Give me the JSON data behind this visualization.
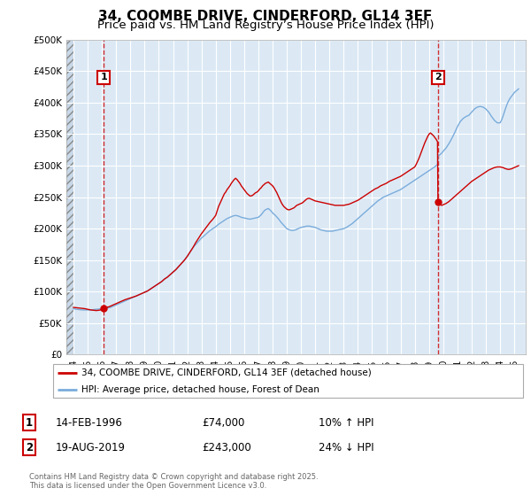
{
  "title": "34, COOMBE DRIVE, CINDERFORD, GL14 3EF",
  "subtitle": "Price paid vs. HM Land Registry’s House Price Index (HPI)",
  "title_fontsize": 11,
  "subtitle_fontsize": 9.5,
  "background_color": "#ffffff",
  "plot_bg_color": "#dce9f5",
  "grid_color": "#ffffff",
  "ylim": [
    0,
    500000
  ],
  "yticks": [
    0,
    50000,
    100000,
    150000,
    200000,
    250000,
    300000,
    350000,
    400000,
    450000,
    500000
  ],
  "ytick_labels": [
    "£0",
    "£50K",
    "£100K",
    "£150K",
    "£200K",
    "£250K",
    "£300K",
    "£350K",
    "£400K",
    "£450K",
    "£500K"
  ],
  "xlim_start": 1993.5,
  "xlim_end": 2025.8,
  "xticks": [
    1994,
    1995,
    1996,
    1997,
    1998,
    1999,
    2000,
    2001,
    2002,
    2003,
    2004,
    2005,
    2006,
    2007,
    2008,
    2009,
    2010,
    2011,
    2012,
    2013,
    2014,
    2015,
    2016,
    2017,
    2018,
    2019,
    2020,
    2021,
    2022,
    2023,
    2024,
    2025
  ],
  "red_line_color": "#cc0000",
  "blue_line_color": "#7aacdb",
  "vline_color": "#cc0000",
  "legend_label_red": "34, COOMBE DRIVE, CINDERFORD, GL14 3EF (detached house)",
  "legend_label_blue": "HPI: Average price, detached house, Forest of Dean",
  "annotation1_year": 1996.12,
  "annotation1_price": 74000,
  "annotation1_date": "14-FEB-1996",
  "annotation1_price_str": "£74,000",
  "annotation1_hpi": "10% ↑ HPI",
  "annotation2_year": 2019.63,
  "annotation2_price": 243000,
  "annotation2_date": "19-AUG-2019",
  "annotation2_price_str": "£243,000",
  "annotation2_hpi": "24% ↓ HPI",
  "footer_text": "Contains HM Land Registry data © Crown copyright and database right 2025.\nThis data is licensed under the Open Government Licence v3.0.",
  "red_data": [
    [
      1994.0,
      75000
    ],
    [
      1994.2,
      74500
    ],
    [
      1994.4,
      74000
    ],
    [
      1994.6,
      73500
    ],
    [
      1994.8,
      73000
    ],
    [
      1995.0,
      72000
    ],
    [
      1995.2,
      71000
    ],
    [
      1995.4,
      70500
    ],
    [
      1995.6,
      70000
    ],
    [
      1995.8,
      70500
    ],
    [
      1996.0,
      71500
    ],
    [
      1996.12,
      74000
    ],
    [
      1996.3,
      75000
    ],
    [
      1996.5,
      76000
    ],
    [
      1996.7,
      78000
    ],
    [
      1996.9,
      80000
    ],
    [
      1997.0,
      81000
    ],
    [
      1997.2,
      83000
    ],
    [
      1997.4,
      85000
    ],
    [
      1997.6,
      87000
    ],
    [
      1997.8,
      88500
    ],
    [
      1998.0,
      90000
    ],
    [
      1998.2,
      91500
    ],
    [
      1998.4,
      93000
    ],
    [
      1998.6,
      95000
    ],
    [
      1998.8,
      97000
    ],
    [
      1999.0,
      99000
    ],
    [
      1999.2,
      101000
    ],
    [
      1999.4,
      104000
    ],
    [
      1999.6,
      107000
    ],
    [
      1999.8,
      110000
    ],
    [
      2000.0,
      113000
    ],
    [
      2000.2,
      116000
    ],
    [
      2000.4,
      120000
    ],
    [
      2000.6,
      123000
    ],
    [
      2000.8,
      127000
    ],
    [
      2001.0,
      131000
    ],
    [
      2001.2,
      135000
    ],
    [
      2001.4,
      140000
    ],
    [
      2001.6,
      145000
    ],
    [
      2001.8,
      150000
    ],
    [
      2002.0,
      156000
    ],
    [
      2002.2,
      163000
    ],
    [
      2002.4,
      170000
    ],
    [
      2002.6,
      178000
    ],
    [
      2002.8,
      185000
    ],
    [
      2003.0,
      192000
    ],
    [
      2003.2,
      198000
    ],
    [
      2003.4,
      204000
    ],
    [
      2003.6,
      210000
    ],
    [
      2003.8,
      215000
    ],
    [
      2004.0,
      221000
    ],
    [
      2004.1,
      228000
    ],
    [
      2004.2,
      235000
    ],
    [
      2004.3,
      240000
    ],
    [
      2004.4,
      245000
    ],
    [
      2004.5,
      250000
    ],
    [
      2004.6,
      255000
    ],
    [
      2004.7,
      258000
    ],
    [
      2004.8,
      262000
    ],
    [
      2004.9,
      265000
    ],
    [
      2005.0,
      268000
    ],
    [
      2005.1,
      272000
    ],
    [
      2005.2,
      275000
    ],
    [
      2005.3,
      278000
    ],
    [
      2005.4,
      280000
    ],
    [
      2005.5,
      278000
    ],
    [
      2005.6,
      275000
    ],
    [
      2005.7,
      272000
    ],
    [
      2005.8,
      268000
    ],
    [
      2005.9,
      265000
    ],
    [
      2006.0,
      262000
    ],
    [
      2006.1,
      259000
    ],
    [
      2006.2,
      256000
    ],
    [
      2006.3,
      254000
    ],
    [
      2006.4,
      252000
    ],
    [
      2006.5,
      252000
    ],
    [
      2006.6,
      253000
    ],
    [
      2006.7,
      255000
    ],
    [
      2006.8,
      257000
    ],
    [
      2006.9,
      258000
    ],
    [
      2007.0,
      260000
    ],
    [
      2007.1,
      263000
    ],
    [
      2007.2,
      265000
    ],
    [
      2007.3,
      268000
    ],
    [
      2007.4,
      270000
    ],
    [
      2007.5,
      272000
    ],
    [
      2007.6,
      273000
    ],
    [
      2007.7,
      274000
    ],
    [
      2007.8,
      272000
    ],
    [
      2007.9,
      270000
    ],
    [
      2008.0,
      268000
    ],
    [
      2008.1,
      265000
    ],
    [
      2008.2,
      261000
    ],
    [
      2008.3,
      257000
    ],
    [
      2008.4,
      252000
    ],
    [
      2008.5,
      247000
    ],
    [
      2008.6,
      242000
    ],
    [
      2008.7,
      238000
    ],
    [
      2008.8,
      235000
    ],
    [
      2008.9,
      233000
    ],
    [
      2009.0,
      231000
    ],
    [
      2009.1,
      230000
    ],
    [
      2009.2,
      230000
    ],
    [
      2009.3,
      231000
    ],
    [
      2009.4,
      232000
    ],
    [
      2009.5,
      233000
    ],
    [
      2009.6,
      235000
    ],
    [
      2009.7,
      237000
    ],
    [
      2009.8,
      238000
    ],
    [
      2009.9,
      239000
    ],
    [
      2010.0,
      240000
    ],
    [
      2010.1,
      241000
    ],
    [
      2010.2,
      243000
    ],
    [
      2010.3,
      245000
    ],
    [
      2010.4,
      247000
    ],
    [
      2010.5,
      248000
    ],
    [
      2010.6,
      248000
    ],
    [
      2010.7,
      247000
    ],
    [
      2010.8,
      246000
    ],
    [
      2010.9,
      245000
    ],
    [
      2011.0,
      244000
    ],
    [
      2011.2,
      243000
    ],
    [
      2011.4,
      242000
    ],
    [
      2011.6,
      241000
    ],
    [
      2011.8,
      240000
    ],
    [
      2012.0,
      239000
    ],
    [
      2012.2,
      238000
    ],
    [
      2012.4,
      237000
    ],
    [
      2012.6,
      237000
    ],
    [
      2012.8,
      237000
    ],
    [
      2013.0,
      237000
    ],
    [
      2013.2,
      238000
    ],
    [
      2013.4,
      239000
    ],
    [
      2013.6,
      241000
    ],
    [
      2013.8,
      243000
    ],
    [
      2014.0,
      245000
    ],
    [
      2014.2,
      248000
    ],
    [
      2014.4,
      251000
    ],
    [
      2014.6,
      254000
    ],
    [
      2014.8,
      257000
    ],
    [
      2015.0,
      260000
    ],
    [
      2015.2,
      263000
    ],
    [
      2015.4,
      265000
    ],
    [
      2015.6,
      268000
    ],
    [
      2015.8,
      270000
    ],
    [
      2016.0,
      272000
    ],
    [
      2016.2,
      275000
    ],
    [
      2016.4,
      277000
    ],
    [
      2016.6,
      279000
    ],
    [
      2016.8,
      281000
    ],
    [
      2017.0,
      283000
    ],
    [
      2017.2,
      286000
    ],
    [
      2017.4,
      289000
    ],
    [
      2017.6,
      292000
    ],
    [
      2017.8,
      295000
    ],
    [
      2018.0,
      298000
    ],
    [
      2018.1,
      302000
    ],
    [
      2018.2,
      307000
    ],
    [
      2018.3,
      312000
    ],
    [
      2018.4,
      318000
    ],
    [
      2018.5,
      324000
    ],
    [
      2018.6,
      330000
    ],
    [
      2018.7,
      336000
    ],
    [
      2018.8,
      341000
    ],
    [
      2018.9,
      346000
    ],
    [
      2019.0,
      350000
    ],
    [
      2019.1,
      352000
    ],
    [
      2019.2,
      350000
    ],
    [
      2019.3,
      348000
    ],
    [
      2019.4,
      345000
    ],
    [
      2019.5,
      342000
    ],
    [
      2019.6,
      338000
    ],
    [
      2019.63,
      243000
    ],
    [
      2019.7,
      240000
    ],
    [
      2019.8,
      238000
    ],
    [
      2019.9,
      237000
    ],
    [
      2020.0,
      238000
    ],
    [
      2020.2,
      240000
    ],
    [
      2020.4,
      243000
    ],
    [
      2020.6,
      247000
    ],
    [
      2020.8,
      251000
    ],
    [
      2021.0,
      255000
    ],
    [
      2021.2,
      259000
    ],
    [
      2021.4,
      263000
    ],
    [
      2021.6,
      267000
    ],
    [
      2021.8,
      271000
    ],
    [
      2022.0,
      275000
    ],
    [
      2022.2,
      278000
    ],
    [
      2022.4,
      281000
    ],
    [
      2022.6,
      284000
    ],
    [
      2022.8,
      287000
    ],
    [
      2023.0,
      290000
    ],
    [
      2023.2,
      293000
    ],
    [
      2023.4,
      295000
    ],
    [
      2023.6,
      297000
    ],
    [
      2023.8,
      298000
    ],
    [
      2024.0,
      298000
    ],
    [
      2024.2,
      297000
    ],
    [
      2024.4,
      295000
    ],
    [
      2024.6,
      294000
    ],
    [
      2024.8,
      295000
    ],
    [
      2025.0,
      297000
    ],
    [
      2025.3,
      300000
    ]
  ],
  "blue_data": [
    [
      1994.0,
      73000
    ],
    [
      1994.2,
      72000
    ],
    [
      1994.4,
      71500
    ],
    [
      1994.6,
      71000
    ],
    [
      1994.8,
      71000
    ],
    [
      1995.0,
      71000
    ],
    [
      1995.2,
      71000
    ],
    [
      1995.4,
      71500
    ],
    [
      1995.6,
      72000
    ],
    [
      1995.8,
      72500
    ],
    [
      1996.0,
      73000
    ],
    [
      1996.2,
      73500
    ],
    [
      1996.4,
      74000
    ],
    [
      1996.6,
      75000
    ],
    [
      1996.8,
      77000
    ],
    [
      1997.0,
      79000
    ],
    [
      1997.2,
      81000
    ],
    [
      1997.4,
      83000
    ],
    [
      1997.6,
      85000
    ],
    [
      1997.8,
      87000
    ],
    [
      1998.0,
      89000
    ],
    [
      1998.2,
      91000
    ],
    [
      1998.4,
      93000
    ],
    [
      1998.6,
      95000
    ],
    [
      1998.8,
      97000
    ],
    [
      1999.0,
      99000
    ],
    [
      1999.2,
      101000
    ],
    [
      1999.4,
      104000
    ],
    [
      1999.6,
      107000
    ],
    [
      1999.8,
      110000
    ],
    [
      2000.0,
      113000
    ],
    [
      2000.2,
      116000
    ],
    [
      2000.4,
      120000
    ],
    [
      2000.6,
      123000
    ],
    [
      2000.8,
      127000
    ],
    [
      2001.0,
      131000
    ],
    [
      2001.2,
      135000
    ],
    [
      2001.4,
      140000
    ],
    [
      2001.6,
      145000
    ],
    [
      2001.8,
      150000
    ],
    [
      2002.0,
      156000
    ],
    [
      2002.2,
      163000
    ],
    [
      2002.4,
      170000
    ],
    [
      2002.6,
      175000
    ],
    [
      2002.8,
      180000
    ],
    [
      2003.0,
      185000
    ],
    [
      2003.2,
      189000
    ],
    [
      2003.4,
      193000
    ],
    [
      2003.6,
      197000
    ],
    [
      2003.8,
      200000
    ],
    [
      2004.0,
      203000
    ],
    [
      2004.2,
      207000
    ],
    [
      2004.4,
      210000
    ],
    [
      2004.6,
      213000
    ],
    [
      2004.8,
      216000
    ],
    [
      2005.0,
      218000
    ],
    [
      2005.2,
      220000
    ],
    [
      2005.4,
      221000
    ],
    [
      2005.6,
      220000
    ],
    [
      2005.8,
      218000
    ],
    [
      2006.0,
      217000
    ],
    [
      2006.2,
      216000
    ],
    [
      2006.4,
      215000
    ],
    [
      2006.6,
      216000
    ],
    [
      2006.8,
      217000
    ],
    [
      2007.0,
      218000
    ],
    [
      2007.1,
      220000
    ],
    [
      2007.2,
      222000
    ],
    [
      2007.3,
      225000
    ],
    [
      2007.4,
      228000
    ],
    [
      2007.5,
      230000
    ],
    [
      2007.6,
      231000
    ],
    [
      2007.7,
      232000
    ],
    [
      2007.8,
      230000
    ],
    [
      2007.9,
      228000
    ],
    [
      2008.0,
      225000
    ],
    [
      2008.2,
      221000
    ],
    [
      2008.4,
      216000
    ],
    [
      2008.6,
      210000
    ],
    [
      2008.8,
      205000
    ],
    [
      2009.0,
      200000
    ],
    [
      2009.2,
      198000
    ],
    [
      2009.4,
      197000
    ],
    [
      2009.6,
      198000
    ],
    [
      2009.8,
      200000
    ],
    [
      2010.0,
      202000
    ],
    [
      2010.2,
      203000
    ],
    [
      2010.4,
      204000
    ],
    [
      2010.6,
      204000
    ],
    [
      2010.8,
      203000
    ],
    [
      2011.0,
      202000
    ],
    [
      2011.2,
      200000
    ],
    [
      2011.4,
      198000
    ],
    [
      2011.6,
      197000
    ],
    [
      2011.8,
      196000
    ],
    [
      2012.0,
      196000
    ],
    [
      2012.2,
      196000
    ],
    [
      2012.4,
      197000
    ],
    [
      2012.6,
      198000
    ],
    [
      2012.8,
      199000
    ],
    [
      2013.0,
      200000
    ],
    [
      2013.2,
      202000
    ],
    [
      2013.4,
      205000
    ],
    [
      2013.6,
      208000
    ],
    [
      2013.8,
      212000
    ],
    [
      2014.0,
      216000
    ],
    [
      2014.2,
      220000
    ],
    [
      2014.4,
      224000
    ],
    [
      2014.6,
      228000
    ],
    [
      2014.8,
      232000
    ],
    [
      2015.0,
      236000
    ],
    [
      2015.2,
      240000
    ],
    [
      2015.4,
      244000
    ],
    [
      2015.6,
      247000
    ],
    [
      2015.8,
      250000
    ],
    [
      2016.0,
      252000
    ],
    [
      2016.2,
      254000
    ],
    [
      2016.4,
      256000
    ],
    [
      2016.6,
      258000
    ],
    [
      2016.8,
      260000
    ],
    [
      2017.0,
      262000
    ],
    [
      2017.2,
      265000
    ],
    [
      2017.4,
      268000
    ],
    [
      2017.6,
      271000
    ],
    [
      2017.8,
      274000
    ],
    [
      2018.0,
      277000
    ],
    [
      2018.2,
      280000
    ],
    [
      2018.4,
      283000
    ],
    [
      2018.6,
      286000
    ],
    [
      2018.8,
      289000
    ],
    [
      2019.0,
      292000
    ],
    [
      2019.2,
      295000
    ],
    [
      2019.4,
      298000
    ],
    [
      2019.6,
      302000
    ],
    [
      2019.63,
      315000
    ],
    [
      2019.8,
      318000
    ],
    [
      2019.9,
      320000
    ],
    [
      2020.0,
      323000
    ],
    [
      2020.2,
      328000
    ],
    [
      2020.4,
      335000
    ],
    [
      2020.6,
      343000
    ],
    [
      2020.8,
      352000
    ],
    [
      2021.0,
      362000
    ],
    [
      2021.2,
      370000
    ],
    [
      2021.4,
      375000
    ],
    [
      2021.6,
      378000
    ],
    [
      2021.8,
      380000
    ],
    [
      2022.0,
      385000
    ],
    [
      2022.2,
      390000
    ],
    [
      2022.4,
      393000
    ],
    [
      2022.6,
      394000
    ],
    [
      2022.8,
      393000
    ],
    [
      2023.0,
      390000
    ],
    [
      2023.2,
      385000
    ],
    [
      2023.4,
      378000
    ],
    [
      2023.6,
      372000
    ],
    [
      2023.8,
      368000
    ],
    [
      2024.0,
      368000
    ],
    [
      2024.1,
      372000
    ],
    [
      2024.2,
      378000
    ],
    [
      2024.3,
      385000
    ],
    [
      2024.4,
      392000
    ],
    [
      2024.5,
      398000
    ],
    [
      2024.6,
      403000
    ],
    [
      2024.7,
      407000
    ],
    [
      2024.8,
      410000
    ],
    [
      2024.9,
      413000
    ],
    [
      2025.0,
      416000
    ],
    [
      2025.1,
      418000
    ],
    [
      2025.2,
      420000
    ],
    [
      2025.3,
      422000
    ]
  ]
}
